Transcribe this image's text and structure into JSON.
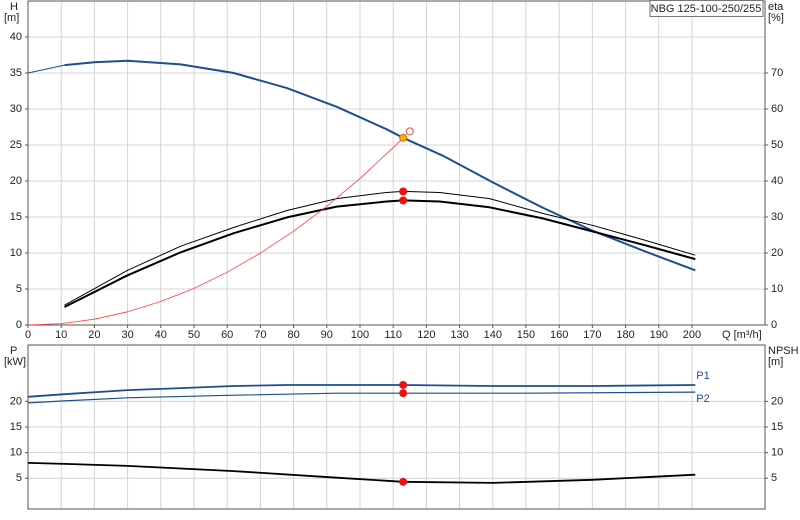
{
  "chart_data": [
    {
      "type": "line",
      "annotation": "NBG 125-100-250/255",
      "ylabel": [
        "H",
        "[m]"
      ],
      "y2label": [
        "eta",
        "[%]"
      ],
      "xlabel": "Q [m³/h]",
      "xlim": [
        0,
        222
      ],
      "xticks": [
        0,
        10,
        20,
        30,
        40,
        50,
        60,
        70,
        80,
        90,
        100,
        110,
        120,
        130,
        140,
        150,
        160,
        170,
        180,
        190,
        200
      ],
      "ylim": [
        0,
        45
      ],
      "yticks": [
        0,
        5,
        10,
        15,
        20,
        25,
        30,
        35,
        40
      ],
      "y2lim": [
        0,
        90
      ],
      "y2ticks": [
        0,
        10,
        20,
        30,
        40,
        50,
        60,
        70
      ],
      "grid": true,
      "series": [
        {
          "color": "#1c4f8f",
          "line_width": 1,
          "x": [
            0,
            11
          ],
          "values": [
            35,
            36.1
          ]
        },
        {
          "color": "#1c4f8f",
          "line_width": 2,
          "x": [
            11,
            20,
            30,
            46,
            62,
            78,
            93,
            108,
            113,
            125,
            140,
            155,
            170,
            186,
            201
          ],
          "values": [
            36.1,
            36.5,
            36.7,
            36.2,
            35,
            32.9,
            30.3,
            27.2,
            26,
            23.5,
            19.8,
            16.3,
            13.1,
            10.2,
            7.6
          ]
        },
        {
          "color": "#000000",
          "line_width": 1,
          "axis": "y2",
          "x": [
            11,
            30,
            46,
            62,
            78,
            93,
            108,
            113,
            124,
            139,
            155,
            170,
            186,
            201
          ],
          "values": [
            5.5,
            15.2,
            21.9,
            27.1,
            31.8,
            35.1,
            36.8,
            37.1,
            36.8,
            35.1,
            31,
            27.7,
            23.5,
            19.4
          ]
        },
        {
          "color": "#000000",
          "line_width": 2,
          "axis": "y2",
          "x": [
            11,
            30,
            46,
            62,
            78,
            93,
            108,
            113,
            124,
            139,
            155,
            170,
            186,
            201
          ],
          "values": [
            5,
            13.8,
            20.2,
            25.5,
            29.9,
            32.9,
            34.3,
            34.6,
            34.3,
            32.7,
            29.6,
            26,
            22.1,
            18.3
          ]
        },
        {
          "color": "#ff4040",
          "line_width": 0.8,
          "x": [
            0,
            10,
            20,
            30,
            40,
            50,
            60,
            70,
            80,
            90,
            100,
            110,
            114
          ],
          "values": [
            0,
            0.2,
            0.81,
            1.83,
            3.26,
            5.09,
            7.33,
            9.98,
            13.03,
            16.49,
            20.36,
            24.64,
            26.46
          ]
        }
      ],
      "markers": [
        {
          "x": 113,
          "y": 37.1,
          "axis": "y2",
          "color": "#ee1111",
          "fill": "#ee1111"
        },
        {
          "x": 113,
          "y": 34.6,
          "axis": "y2",
          "color": "#ee1111",
          "fill": "#ee1111"
        },
        {
          "x": 115,
          "y": 26.9,
          "axis": "y",
          "color": "#e05050",
          "fill": "#ffffff"
        },
        {
          "x": 113,
          "y": 26,
          "axis": "y",
          "color": "#e07000",
          "fill": "#f5b400"
        }
      ]
    },
    {
      "type": "line",
      "ylabel": [
        "P",
        "[kW]"
      ],
      "y2label": [
        "NPSH",
        "[m]"
      ],
      "ylim": [
        -1,
        31
      ],
      "yticks": [
        5,
        10,
        15,
        20
      ],
      "y2lim": [
        -1,
        31
      ],
      "y2ticks": [
        5,
        10,
        15,
        20
      ],
      "grid": true,
      "series": [
        {
          "name": "P1",
          "color": "#1c4f8f",
          "line_width": 1.8,
          "x": [
            0,
            11,
            30,
            46,
            62,
            78,
            113,
            140,
            170,
            201
          ],
          "values": [
            20.9,
            21.4,
            22.2,
            22.6,
            23,
            23.2,
            23.2,
            23,
            23,
            23.2
          ]
        },
        {
          "name": "P2",
          "color": "#1c4f8f",
          "line_width": 1.2,
          "x": [
            0,
            11,
            30,
            62,
            93,
            113,
            150,
            201
          ],
          "values": [
            19.7,
            20.1,
            20.7,
            21.2,
            21.6,
            21.6,
            21.6,
            21.8
          ]
        },
        {
          "color": "#000000",
          "line_width": 1.8,
          "axis": "y2",
          "x": [
            0,
            11,
            30,
            62,
            93,
            113,
            140,
            170,
            201
          ],
          "values": [
            8,
            7.8,
            7.4,
            6.4,
            5.1,
            4.3,
            4.1,
            4.7,
            5.7
          ]
        }
      ],
      "markers": [
        {
          "x": 113,
          "y": 23.2,
          "axis": "y",
          "color": "#ee1111",
          "fill": "#ee1111"
        },
        {
          "x": 113,
          "y": 21.6,
          "axis": "y",
          "color": "#ee1111",
          "fill": "#ee1111"
        },
        {
          "x": 113,
          "y": 4.3,
          "axis": "y2",
          "color": "#ee1111",
          "fill": "#ee1111"
        }
      ]
    }
  ]
}
